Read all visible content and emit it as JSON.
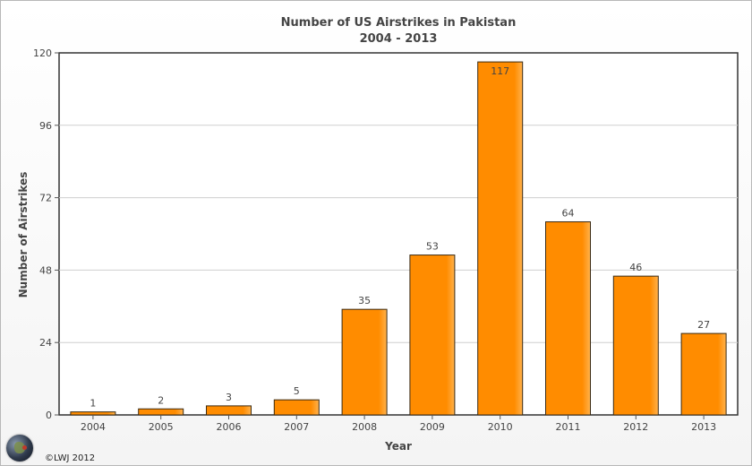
{
  "chart_data": {
    "type": "bar",
    "title": "Number of US Airstrikes in Pakistan",
    "subtitle": "2004 - 2013",
    "xlabel": "Year",
    "ylabel": "Number of Airstrikes",
    "categories": [
      "2004",
      "2005",
      "2006",
      "2007",
      "2008",
      "2009",
      "2010",
      "2011",
      "2012",
      "2013"
    ],
    "values": [
      1,
      2,
      3,
      5,
      35,
      53,
      117,
      64,
      46,
      27
    ],
    "ylim": [
      0,
      120
    ],
    "yticks": [
      0,
      24,
      48,
      72,
      96,
      120
    ],
    "grid": true,
    "data_labels": true,
    "bar_color": "#ff8c00",
    "bar_highlight": "#ffb24d",
    "bar_border": "#3b2a12"
  },
  "credit": "©LWJ 2012",
  "logo_icon": "globe-icon"
}
